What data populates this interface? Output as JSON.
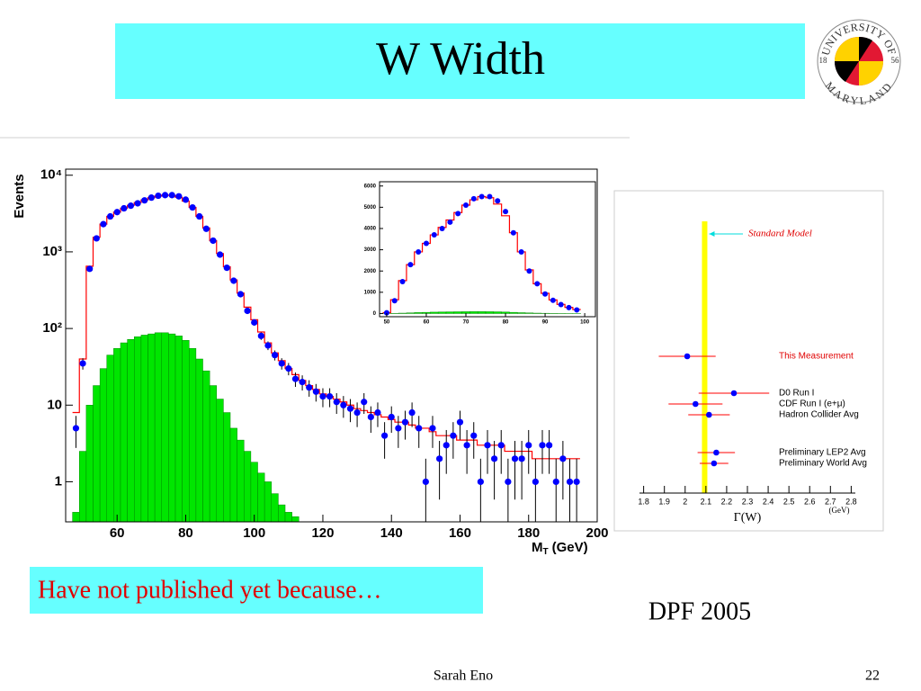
{
  "slide": {
    "title": "W Width",
    "note": "Have not published yet because…",
    "conference": "DPF 2005",
    "author": "Sarah Eno",
    "page": "22",
    "logo": {
      "top": "UNIVERSITY OF",
      "bottom": "MARYLAND",
      "left": "18",
      "right": "56"
    }
  },
  "chart_data": [
    {
      "type": "histogram-log",
      "y_label": "Events",
      "x_label": "M",
      "x_label_sub": "T",
      "x_label_unit": "(GeV)",
      "xlim": [
        45,
        200
      ],
      "xticks": [
        60,
        80,
        100,
        120,
        140,
        160,
        180,
        200
      ],
      "ylim": [
        0.3,
        12000
      ],
      "log_y": true,
      "yticks": [
        1,
        10,
        {
          "value": 100,
          "label": "10²"
        },
        {
          "value": 1000,
          "label": "10³"
        },
        {
          "value": 10000,
          "label": "10⁴"
        }
      ],
      "x": [
        48,
        50,
        52,
        54,
        56,
        58,
        60,
        62,
        64,
        66,
        68,
        70,
        72,
        74,
        76,
        78,
        80,
        82,
        84,
        86,
        88,
        90,
        92,
        94,
        96,
        98,
        100,
        102,
        104,
        106,
        108,
        110,
        112,
        114,
        116,
        118,
        120,
        122,
        124,
        126,
        128,
        130,
        132,
        134,
        136,
        138,
        140,
        142,
        144,
        146,
        148,
        150,
        152,
        154,
        156,
        158,
        160,
        162,
        164,
        166,
        168,
        170,
        172,
        174,
        176,
        178,
        180,
        182,
        184,
        186,
        188,
        190,
        192,
        194
      ],
      "series": [
        {
          "style": "filled",
          "color": "#00e600",
          "values": [
            0.4,
            2.5,
            10,
            18,
            30,
            45,
            55,
            65,
            72,
            78,
            82,
            85,
            88,
            88,
            85,
            80,
            70,
            55,
            40,
            28,
            18,
            12,
            8,
            5,
            3.5,
            2.5,
            1.8,
            1.3,
            1,
            0.7,
            0.5,
            0.4,
            0.35,
            null,
            null,
            null,
            null,
            null,
            null,
            null,
            null,
            null,
            null,
            null,
            null,
            null,
            null,
            null,
            null,
            null,
            null,
            null,
            null,
            null,
            null,
            null,
            null,
            null,
            null,
            null,
            null,
            null,
            null,
            null,
            null,
            null,
            null,
            null,
            null,
            null,
            null,
            null,
            null,
            null
          ]
        },
        {
          "style": "step",
          "color": "#ff0000",
          "values": [
            8,
            40,
            650,
            1550,
            2300,
            2900,
            3300,
            3700,
            4050,
            4400,
            4750,
            5100,
            5350,
            5500,
            5450,
            5150,
            4600,
            3800,
            2900,
            2050,
            1400,
            950,
            640,
            430,
            290,
            190,
            130,
            90,
            65,
            48,
            38,
            30,
            25,
            21,
            18,
            16,
            14,
            13,
            12,
            11,
            10,
            9,
            8.5,
            8,
            7.5,
            7,
            6.5,
            6,
            6,
            5.5,
            5,
            5,
            4.5,
            4,
            4,
            4,
            3.5,
            3.5,
            3.5,
            3,
            3,
            3,
            3,
            2.5,
            2.5,
            2.5,
            2.5,
            2,
            2,
            2,
            2,
            2,
            2,
            2
          ]
        },
        {
          "style": "points",
          "color": "#0000ff",
          "values": [
            5,
            35,
            600,
            1500,
            2300,
            2900,
            3300,
            3700,
            4000,
            4300,
            4700,
            5100,
            5400,
            5500,
            5500,
            5300,
            4800,
            3800,
            2900,
            2000,
            1400,
            920,
            620,
            420,
            280,
            170,
            120,
            80,
            60,
            45,
            35,
            30,
            22,
            20,
            17,
            15,
            13,
            13,
            11,
            10,
            9,
            8,
            11,
            7,
            8,
            4,
            7,
            5,
            6,
            8,
            5,
            1,
            5,
            2,
            3,
            4,
            6,
            3,
            4,
            1,
            3,
            2,
            3,
            1,
            2,
            2,
            3,
            1,
            3,
            3,
            1,
            2,
            1,
            1
          ]
        }
      ]
    },
    {
      "type": "histogram-linear",
      "xlim": [
        48.2,
        102.7
      ],
      "xticks": [
        50,
        60,
        70,
        80,
        90,
        100
      ],
      "ylim": [
        -150,
        6200
      ],
      "yticks": [
        0,
        1000,
        2000,
        3000,
        4000,
        5000,
        6000
      ],
      "x": [
        50,
        52,
        54,
        56,
        58,
        60,
        62,
        64,
        66,
        68,
        70,
        72,
        74,
        76,
        78,
        80,
        82,
        84,
        86,
        88,
        90,
        92,
        94,
        96,
        98
      ],
      "series": [
        {
          "style": "filled",
          "color": "#00e600",
          "values": [
            2.5,
            10,
            18,
            30,
            45,
            55,
            65,
            72,
            78,
            82,
            85,
            88,
            88,
            85,
            80,
            70,
            55,
            40,
            28,
            18,
            12,
            8,
            5,
            3.5,
            2.5
          ]
        },
        {
          "style": "step",
          "color": "#ff0000",
          "values": [
            40,
            650,
            1550,
            2300,
            2900,
            3300,
            3700,
            4050,
            4400,
            4750,
            5100,
            5350,
            5500,
            5450,
            5150,
            4600,
            3800,
            2900,
            2050,
            1400,
            950,
            640,
            430,
            290,
            190
          ]
        },
        {
          "style": "points",
          "color": "#0000ff",
          "values": [
            35,
            600,
            1500,
            2300,
            2900,
            3300,
            3700,
            4000,
            4300,
            4700,
            5100,
            5400,
            5500,
            5500,
            5300,
            4800,
            3800,
            2900,
            2000,
            1400,
            920,
            620,
            420,
            280,
            170
          ]
        }
      ]
    },
    {
      "type": "errorbar",
      "x_label": "Γ(W)",
      "x_unit": "(GeV)",
      "xlim": [
        1.78,
        2.82
      ],
      "xticks": [
        1.8,
        1.9,
        2,
        2.1,
        2.2,
        2.3,
        2.4,
        2.5,
        2.6,
        2.7,
        2.8
      ],
      "reference": {
        "label": "Standard Model",
        "value": 2.094,
        "color": "#ffff00"
      },
      "categories": [
        "This Measurement",
        "D0 Run I",
        "CDF Run I (e+μ)",
        "Hadron Collider Avg",
        "Preliminary LEP2 Avg",
        "Preliminary World Avg"
      ],
      "values": [
        2.01,
        2.235,
        2.05,
        2.115,
        2.15,
        2.139
      ],
      "errors": [
        0.137,
        0.17,
        0.13,
        0.1,
        0.09,
        0.069
      ],
      "color": "#0000ff",
      "error_color": "#ff0000"
    }
  ]
}
